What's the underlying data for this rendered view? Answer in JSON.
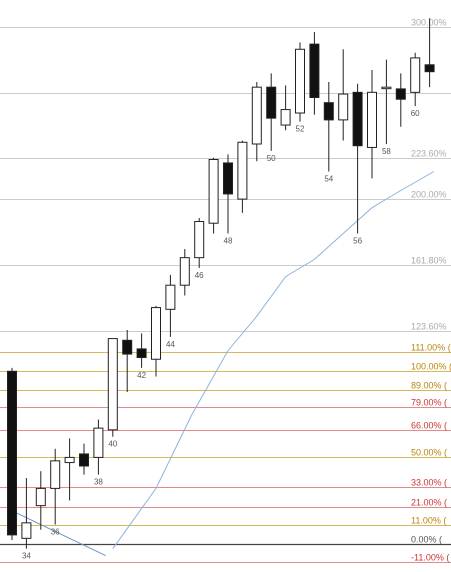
{
  "chart_data": {
    "type": "candlestick",
    "title": "",
    "xlabel": "",
    "ylabel": "",
    "grid": true,
    "levels": [
      {
        "value": 300.0,
        "label": "300.00%",
        "group": "grey"
      },
      {
        "value": 261.8,
        "label": "",
        "group": "grey"
      },
      {
        "value": 223.6,
        "label": "223.60%",
        "group": "grey"
      },
      {
        "value": 200.0,
        "label": "200.00%",
        "group": "grey"
      },
      {
        "value": 161.8,
        "label": "161.80%",
        "group": "grey"
      },
      {
        "value": 123.6,
        "label": "123.60%",
        "group": "grey"
      },
      {
        "value": 111.0,
        "label": "111.00% (",
        "group": "gold"
      },
      {
        "value": 100.0,
        "label": "100.00% (",
        "group": "gold"
      },
      {
        "value": 89.0,
        "label": "89.00% (",
        "group": "gold"
      },
      {
        "value": 79.0,
        "label": "79.00% (",
        "group": "red"
      },
      {
        "value": 66.0,
        "label": "66.00% (",
        "group": "red"
      },
      {
        "value": 50.0,
        "label": "50.00% (",
        "group": "gold"
      },
      {
        "value": 33.0,
        "label": "33.00% (",
        "group": "red"
      },
      {
        "value": 21.0,
        "label": "21.00% (",
        "group": "red"
      },
      {
        "value": 11.0,
        "label": "11.00% (",
        "group": "gold"
      },
      {
        "value": 0.0,
        "label": "0.00% (",
        "group": "dark"
      },
      {
        "value": -11.0,
        "label": "-11.00% (",
        "group": "red"
      }
    ],
    "candles": [
      {
        "o": 100,
        "h": 102,
        "l": 2,
        "c": 5,
        "label": ""
      },
      {
        "o": 3,
        "h": 38,
        "l": -3,
        "c": 12,
        "label": "34"
      },
      {
        "o": 22,
        "h": 42,
        "l": 8,
        "c": 32,
        "label": ""
      },
      {
        "o": 32,
        "h": 55,
        "l": 11,
        "c": 48,
        "label": "36"
      },
      {
        "o": 47,
        "h": 61,
        "l": 25,
        "c": 50,
        "label": ""
      },
      {
        "o": 52,
        "h": 58,
        "l": 40,
        "c": 45,
        "label": ""
      },
      {
        "o": 50,
        "h": 72,
        "l": 40,
        "c": 67,
        "label": "38"
      },
      {
        "o": 66,
        "h": 118,
        "l": 62,
        "c": 119,
        "label": "40"
      },
      {
        "o": 118,
        "h": 124,
        "l": 88,
        "c": 110,
        "label": ""
      },
      {
        "o": 113,
        "h": 122,
        "l": 102,
        "c": 108,
        "label": "42"
      },
      {
        "o": 107,
        "h": 138,
        "l": 97,
        "c": 137,
        "label": ""
      },
      {
        "o": 136,
        "h": 156,
        "l": 120,
        "c": 150,
        "label": "44"
      },
      {
        "o": 150,
        "h": 171,
        "l": 144,
        "c": 166,
        "label": ""
      },
      {
        "o": 166,
        "h": 189,
        "l": 160,
        "c": 187,
        "label": "46"
      },
      {
        "o": 186,
        "h": 224,
        "l": 180,
        "c": 223,
        "label": ""
      },
      {
        "o": 221,
        "h": 226,
        "l": 180,
        "c": 203,
        "label": "48"
      },
      {
        "o": 200,
        "h": 234,
        "l": 192,
        "c": 233,
        "label": ""
      },
      {
        "o": 232,
        "h": 268,
        "l": 222,
        "c": 265,
        "label": ""
      },
      {
        "o": 265,
        "h": 273,
        "l": 228,
        "c": 247,
        "label": "50"
      },
      {
        "o": 243,
        "h": 266,
        "l": 240,
        "c": 252,
        "label": ""
      },
      {
        "o": 250,
        "h": 291,
        "l": 245,
        "c": 287,
        "label": "52"
      },
      {
        "o": 290,
        "h": 297,
        "l": 249,
        "c": 259,
        "label": ""
      },
      {
        "o": 256,
        "h": 268,
        "l": 216,
        "c": 246,
        "label": "54"
      },
      {
        "o": 246,
        "h": 287,
        "l": 234,
        "c": 261,
        "label": ""
      },
      {
        "o": 262,
        "h": 267,
        "l": 180,
        "c": 231,
        "label": "56"
      },
      {
        "o": 230,
        "h": 275,
        "l": 212,
        "c": 262,
        "label": ""
      },
      {
        "o": 265,
        "h": 281,
        "l": 232,
        "c": 265,
        "label": "58"
      },
      {
        "o": 264,
        "h": 273,
        "l": 242,
        "c": 258,
        "label": ""
      },
      {
        "o": 262,
        "h": 285,
        "l": 254,
        "c": 282,
        "label": "60"
      },
      {
        "o": 278,
        "h": 305,
        "l": 265,
        "c": 274,
        "label": ""
      }
    ],
    "moving_average": [
      {
        "i": 7.0,
        "v": -3
      },
      {
        "i": 10.0,
        "v": 32
      },
      {
        "i": 12.5,
        "v": 75
      },
      {
        "i": 15.0,
        "v": 112
      },
      {
        "i": 17.0,
        "v": 132
      },
      {
        "i": 19.0,
        "v": 155
      },
      {
        "i": 21.0,
        "v": 165
      },
      {
        "i": 23.0,
        "v": 180
      },
      {
        "i": 25.0,
        "v": 195
      },
      {
        "i": 27.0,
        "v": 205
      },
      {
        "i": 29.3,
        "v": 216
      }
    ],
    "trend_line": [
      {
        "i": 0.0,
        "v": 19
      },
      {
        "i": 6.5,
        "v": -7
      }
    ]
  }
}
